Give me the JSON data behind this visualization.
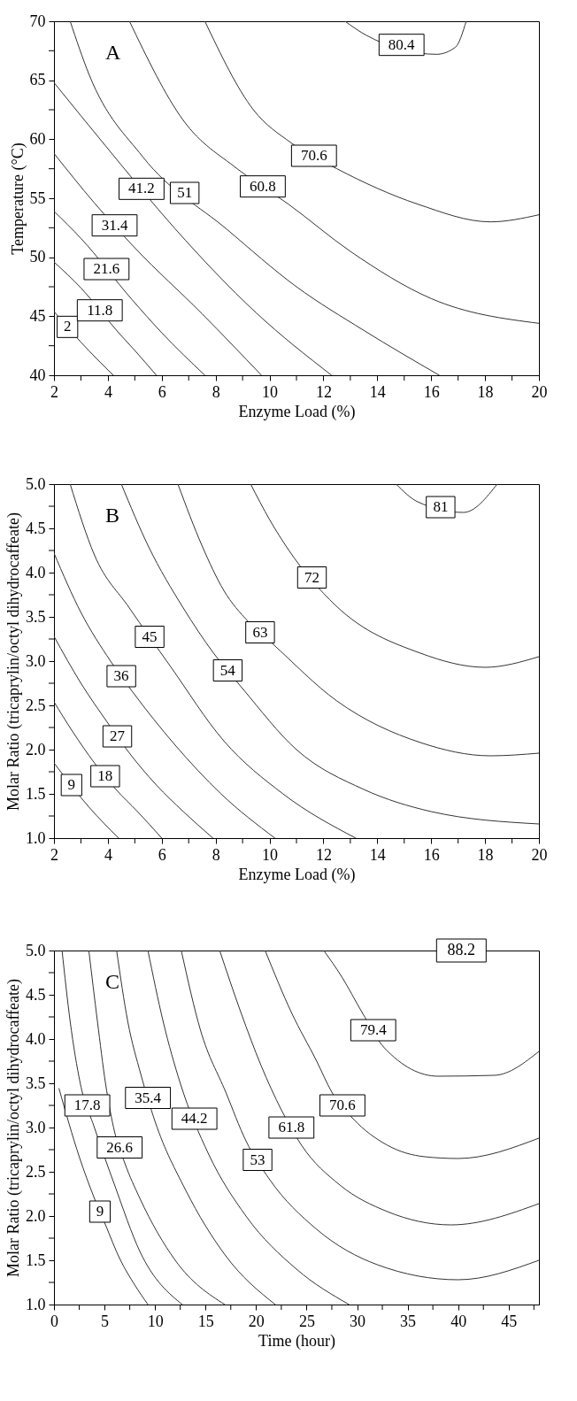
{
  "chart_data": [
    {
      "type": "line",
      "title": "A",
      "xlabel": "Enzyme Load (%)",
      "ylabel": "Temperature (°C)",
      "xlim": [
        2,
        20
      ],
      "ylim": [
        40,
        70
      ],
      "xticks": [
        2,
        {
          "value": 3,
          "label": null
        },
        4,
        {
          "value": 5,
          "label": null
        },
        6,
        {
          "value": 7,
          "label": null
        },
        8,
        {
          "value": 9,
          "label": null
        },
        10,
        {
          "value": 11,
          "label": null
        },
        12,
        {
          "value": 13,
          "label": null
        },
        14,
        {
          "value": 15,
          "label": null
        },
        16,
        {
          "value": 17,
          "label": null
        },
        18,
        {
          "value": 19,
          "label": null
        },
        20
      ],
      "yticks": [
        40,
        {
          "value": 42.5,
          "label": null
        },
        45,
        {
          "value": 47.5,
          "label": null
        },
        50,
        {
          "value": 52.5,
          "label": null
        },
        55,
        {
          "value": 57.5,
          "label": null
        },
        60,
        {
          "value": 62.5,
          "label": null
        },
        65,
        {
          "value": 67.5,
          "label": null
        },
        70
      ],
      "series": [
        {
          "name": "2",
          "color": "#333333",
          "x": [
            2,
            3,
            4.2
          ],
          "values": [
            45.4,
            42.8,
            40
          ]
        },
        {
          "name": "11.8",
          "color": "#333333",
          "x": [
            2,
            3,
            4.4,
            5,
            5.8
          ],
          "values": [
            49.6,
            47.4,
            43.6,
            42.1,
            40
          ]
        },
        {
          "name": "21.6",
          "color": "#333333",
          "x": [
            2,
            3,
            4.9,
            6,
            7.6
          ],
          "values": [
            53.9,
            51.6,
            46.4,
            43.6,
            40
          ]
        },
        {
          "name": "31.4",
          "color": "#333333",
          "x": [
            2,
            3.5,
            5,
            7.5,
            9.7
          ],
          "values": [
            58.8,
            54.6,
            50.8,
            45.2,
            40
          ]
        },
        {
          "name": "41.2",
          "color": "#333333",
          "x": [
            2,
            4,
            6.5,
            9.5,
            12.3
          ],
          "values": [
            64.8,
            59.2,
            52.4,
            45.3,
            40
          ]
        },
        {
          "name": "51",
          "color": "#333333",
          "x": [
            2.6,
            3.3,
            5.3,
            8.4,
            11,
            13.5,
            16.3
          ],
          "values": [
            70,
            65.5,
            58.5,
            52.4,
            47.5,
            43.8,
            40
          ]
        },
        {
          "name": "60.8",
          "color": "#333333",
          "x": [
            4.8,
            6.8,
            8.8,
            10.7,
            13,
            16,
            20
          ],
          "values": [
            70,
            61.6,
            57.5,
            54.5,
            50.5,
            46.5,
            44.4
          ]
        },
        {
          "name": "70.6",
          "color": "#333333",
          "x": [
            7.6,
            9.4,
            10.8,
            12.5,
            15.5,
            18.2,
            20
          ],
          "values": [
            70,
            62.5,
            59.7,
            57.5,
            54.5,
            53,
            53.6
          ]
        },
        {
          "name": "80.4",
          "color": "#333333",
          "x": [
            12.8,
            13.6,
            16.2,
            16.9,
            17.3
          ],
          "values": [
            70,
            68.8,
            67.2,
            67.8,
            70
          ]
        }
      ]
    },
    {
      "type": "line",
      "title": "B",
      "xlabel": "Enzyme Load (%)",
      "ylabel": "Molar Ratio (tricaprylin/octyl dihydrocaffeate)",
      "xlim": [
        2,
        20
      ],
      "ylim": [
        1,
        5
      ],
      "xticks": [
        2,
        {
          "value": 3,
          "label": null
        },
        4,
        {
          "value": 5,
          "label": null
        },
        6,
        {
          "value": 7,
          "label": null
        },
        8,
        {
          "value": 9,
          "label": null
        },
        10,
        {
          "value": 11,
          "label": null
        },
        12,
        {
          "value": 13,
          "label": null
        },
        14,
        {
          "value": 15,
          "label": null
        },
        16,
        {
          "value": 17,
          "label": null
        },
        18,
        {
          "value": 19,
          "label": null
        },
        20
      ],
      "yticks": [
        {
          "value": 1,
          "label": "1.0"
        },
        {
          "value": 1.25,
          "label": null
        },
        1.5,
        {
          "value": 1.75,
          "label": null
        },
        {
          "value": 2,
          "label": "2.0"
        },
        {
          "value": 2.25,
          "label": null
        },
        2.5,
        {
          "value": 2.75,
          "label": null
        },
        {
          "value": 3,
          "label": "3.0"
        },
        {
          "value": 3.25,
          "label": null
        },
        3.5,
        {
          "value": 3.75,
          "label": null
        },
        {
          "value": 4,
          "label": "4.0"
        },
        {
          "value": 4.25,
          "label": null
        },
        4.5,
        {
          "value": 4.75,
          "label": null
        },
        {
          "value": 5,
          "label": "5.0"
        }
      ],
      "series": [
        {
          "name": "9",
          "color": "#333333",
          "x": [
            2,
            3.3,
            4.4
          ],
          "values": [
            1.85,
            1.35,
            1
          ]
        },
        {
          "name": "18",
          "color": "#333333",
          "x": [
            2,
            2.7,
            3.5,
            4.3,
            5.1,
            6
          ],
          "values": [
            2.54,
            2.2,
            1.85,
            1.55,
            1.3,
            1
          ]
        },
        {
          "name": "27",
          "color": "#333333",
          "x": [
            2,
            3,
            4,
            4.7,
            5.8,
            6.8,
            7.9
          ],
          "values": [
            3.28,
            2.75,
            2.3,
            2,
            1.6,
            1.3,
            1
          ]
        },
        {
          "name": "36",
          "color": "#333333",
          "x": [
            2,
            3,
            4.1,
            4.9,
            6.5,
            8.2,
            10.2
          ],
          "values": [
            4.22,
            3.55,
            3,
            2.66,
            2.05,
            1.5,
            1
          ]
        },
        {
          "name": "45",
          "color": "#333333",
          "x": [
            2.6,
            3.5,
            4.8,
            6.3,
            8.3,
            10.5,
            13.2
          ],
          "values": [
            5,
            4.2,
            3.6,
            2.95,
            2.1,
            1.5,
            1
          ]
        },
        {
          "name": "54",
          "color": "#333333",
          "x": [
            4.5,
            5.5,
            6.8,
            7.9,
            9,
            11,
            13.5,
            16,
            20
          ],
          "values": [
            5,
            4.3,
            3.6,
            3.1,
            2.69,
            2,
            1.55,
            1.3,
            1.16
          ]
        },
        {
          "name": "63",
          "color": "#333333",
          "x": [
            6.6,
            7.5,
            8.3,
            9.2,
            10.1,
            12.5,
            15.6,
            18.2,
            20
          ],
          "values": [
            5,
            4.3,
            3.8,
            3.45,
            3.2,
            2.55,
            2.08,
            1.93,
            1.96
          ]
        },
        {
          "name": "72",
          "color": "#333333",
          "x": [
            9.3,
            10,
            10.7,
            12.45,
            15.6,
            18,
            20
          ],
          "values": [
            5,
            4.6,
            4.26,
            3.63,
            3.09,
            2.93,
            3.05
          ]
        },
        {
          "name": "81",
          "color": "#333333",
          "x": [
            14.7,
            15.5,
            17.2,
            18.45
          ],
          "values": [
            5,
            4.8,
            4.68,
            5
          ]
        }
      ]
    },
    {
      "type": "line",
      "title": "C",
      "xlabel": "Time (hour)",
      "ylabel": "Molar Ratio (tricaprylin/octyl dihydrocaffeate)",
      "xlim": [
        0,
        48
      ],
      "ylim": [
        1,
        5
      ],
      "xticks": [
        0,
        {
          "value": 2.5,
          "label": null
        },
        5,
        {
          "value": 7.5,
          "label": null
        },
        10,
        {
          "value": 12.5,
          "label": null
        },
        15,
        {
          "value": 17.5,
          "label": null
        },
        20,
        {
          "value": 22.5,
          "label": null
        },
        25,
        {
          "value": 27.5,
          "label": null
        },
        30,
        {
          "value": 32.5,
          "label": null
        },
        35,
        {
          "value": 37.5,
          "label": null
        },
        40,
        {
          "value": 42.5,
          "label": null
        },
        45,
        {
          "value": 47.5,
          "label": null
        }
      ],
      "yticks": [
        {
          "value": 1,
          "label": "1.0"
        },
        {
          "value": 1.25,
          "label": null
        },
        1.5,
        {
          "value": 1.75,
          "label": null
        },
        {
          "value": 2,
          "label": "2.0"
        },
        {
          "value": 2.25,
          "label": null
        },
        2.5,
        {
          "value": 2.75,
          "label": null
        },
        {
          "value": 3,
          "label": "3.0"
        },
        {
          "value": 3.25,
          "label": null
        },
        3.5,
        {
          "value": 3.75,
          "label": null
        },
        {
          "value": 4,
          "label": "4.0"
        },
        {
          "value": 4.25,
          "label": null
        },
        4.5,
        {
          "value": 4.75,
          "label": null
        },
        {
          "value": 5,
          "label": "5.0"
        }
      ],
      "annotations": [
        "88.2"
      ],
      "series": [
        {
          "name": "9",
          "color": "#333333",
          "x": [
            0.5,
            2.5,
            4,
            5.1,
            6.5,
            8,
            9.3
          ],
          "values": [
            3.44,
            2.67,
            2.2,
            1.9,
            1.52,
            1.22,
            1
          ]
        },
        {
          "name": "17.8",
          "color": "#333333",
          "x": [
            0.8,
            1.6,
            2.6,
            4,
            6,
            8.5,
            12.7
          ],
          "values": [
            5,
            4.2,
            3.5,
            3,
            2.35,
            1.6,
            1
          ]
        },
        {
          "name": "26.6",
          "color": "#333333",
          "x": [
            3.45,
            4.3,
            5.1,
            6,
            7,
            8.5,
            12,
            16.9
          ],
          "values": [
            5,
            4.2,
            3.5,
            2.95,
            2.6,
            2.2,
            1.5,
            1
          ]
        },
        {
          "name": "35.4",
          "color": "#333333",
          "x": [
            6.2,
            7.3,
            8.6,
            10,
            13,
            17,
            21.9
          ],
          "values": [
            5,
            4.2,
            3.6,
            3.07,
            2.3,
            1.55,
            1
          ]
        },
        {
          "name": "44.2",
          "color": "#333333",
          "x": [
            9.3,
            10.8,
            12.5,
            15.3,
            19,
            24,
            29.2
          ],
          "values": [
            5,
            4.2,
            3.5,
            2.7,
            2,
            1.4,
            1
          ]
        },
        {
          "name": "53",
          "color": "#333333",
          "x": [
            12.6,
            14.5,
            17,
            19,
            21.3,
            26,
            32,
            40,
            48
          ],
          "values": [
            5,
            4.1,
            3.4,
            2.85,
            2.42,
            1.85,
            1.45,
            1.28,
            1.5
          ]
        },
        {
          "name": "61.8",
          "color": "#333333",
          "x": [
            16.4,
            18.5,
            20.5,
            22.5,
            24.5,
            28.3,
            33,
            39.3,
            48
          ],
          "values": [
            5,
            4.3,
            3.7,
            3.2,
            2.8,
            2.35,
            2.05,
            1.9,
            2.14
          ]
        },
        {
          "name": "70.6",
          "color": "#333333",
          "x": [
            20.9,
            23.5,
            26,
            27.5,
            29.6,
            33,
            36.7,
            40,
            48
          ],
          "values": [
            5,
            4.3,
            3.75,
            3.4,
            3.1,
            2.8,
            2.67,
            2.65,
            2.88
          ]
        },
        {
          "name": "79.4",
          "color": "#333333",
          "x": [
            26.7,
            28.5,
            30.5,
            32.7,
            38,
            43.6,
            48
          ],
          "values": [
            5,
            4.7,
            4.3,
            3.9,
            3.58,
            3.59,
            3.86
          ]
        }
      ]
    }
  ]
}
